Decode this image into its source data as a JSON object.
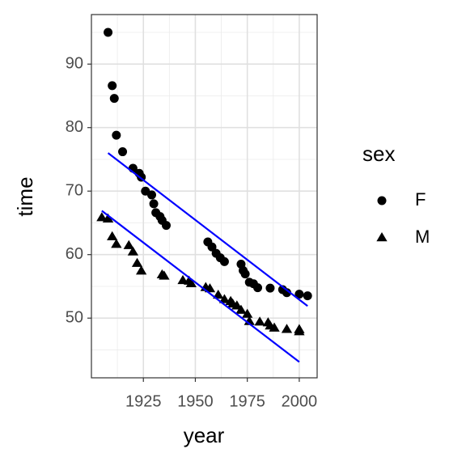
{
  "chart_data": {
    "type": "scatter",
    "x_label": "year",
    "y_label": "time",
    "legend_title": "sex",
    "xlim": [
      1900,
      2008.6
    ],
    "ylim": [
      40.6,
      97.8
    ],
    "xticks": [
      1925,
      1950,
      1975,
      2000
    ],
    "yticks": [
      50,
      60,
      70,
      80,
      90
    ],
    "grid": true,
    "legend": "right",
    "series": [
      {
        "name": "F",
        "color": "#000000",
        "shape": "circle",
        "x": [
          1908,
          1910,
          1911,
          1912,
          1915,
          1920,
          1923,
          1924,
          1926,
          1929,
          1930,
          1931,
          1933,
          1934,
          1936,
          1956,
          1958,
          1960,
          1962,
          1964,
          1972,
          1973,
          1974,
          1976,
          1978,
          1980,
          1986,
          1992,
          1994,
          2000,
          2004
        ],
        "values": [
          95.0,
          86.6,
          84.6,
          78.8,
          76.2,
          73.6,
          72.8,
          72.2,
          70.0,
          69.4,
          68.0,
          66.6,
          66.0,
          65.4,
          64.6,
          62.0,
          61.2,
          60.2,
          59.5,
          58.9,
          58.5,
          57.5,
          56.96,
          55.65,
          55.41,
          54.79,
          54.73,
          54.48,
          54.01,
          53.77,
          53.52
        ]
      },
      {
        "name": "M",
        "color": "#000000",
        "shape": "triangle",
        "x": [
          1905,
          1908,
          1910,
          1912,
          1918,
          1920,
          1922,
          1924,
          1934,
          1935,
          1944,
          1947,
          1948,
          1955,
          1957,
          1961,
          1964,
          1967,
          1968,
          1970,
          1972,
          1975,
          1976,
          1981,
          1985,
          1986,
          1988,
          1994,
          2000,
          2000
        ],
        "values": [
          65.8,
          65.6,
          62.8,
          61.6,
          61.4,
          60.4,
          58.6,
          57.4,
          56.8,
          56.6,
          55.9,
          55.8,
          55.4,
          54.8,
          54.6,
          53.6,
          52.9,
          52.6,
          52.2,
          51.9,
          51.22,
          50.59,
          49.44,
          49.36,
          49.24,
          48.74,
          48.42,
          48.21,
          48.18,
          47.84
        ]
      }
    ],
    "trend_lines": [
      {
        "color": "#0000ff",
        "x": [
          1908,
          2004
        ],
        "values": [
          76.0,
          51.9
        ]
      },
      {
        "color": "#0000ff",
        "x": [
          1905,
          2000
        ],
        "values": [
          66.9,
          43.1
        ]
      }
    ]
  }
}
